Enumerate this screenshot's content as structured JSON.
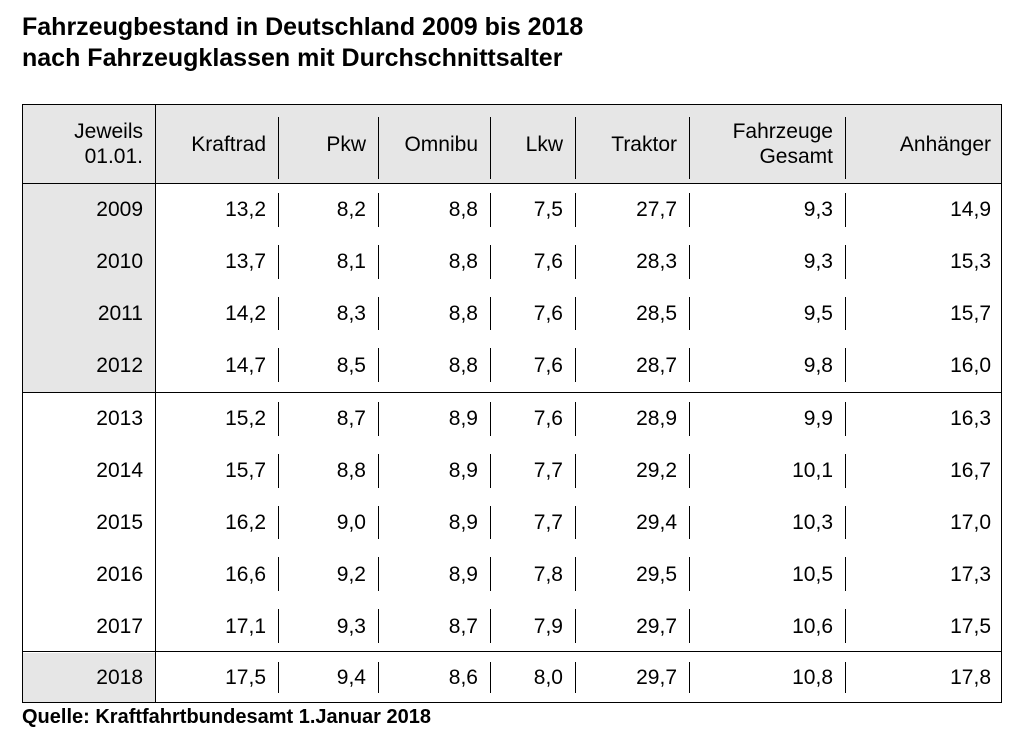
{
  "title": {
    "line1": "Fahrzeugbestand in Deutschland 2009 bis 2018",
    "line2": "nach Fahrzeugklassen mit Durchschnittsalter"
  },
  "table": {
    "headers": [
      {
        "line1": "Jeweils",
        "line2": "01.01."
      },
      {
        "line1": "Kraftrad",
        "line2": ""
      },
      {
        "line1": "Pkw",
        "line2": ""
      },
      {
        "line1": "Omnibu",
        "line2": ""
      },
      {
        "line1": "Lkw",
        "line2": ""
      },
      {
        "line1": "Traktor",
        "line2": ""
      },
      {
        "line1": "Fahrzeuge",
        "line2": "Gesamt"
      },
      {
        "line1": "Anhänger",
        "line2": ""
      }
    ],
    "rows": [
      [
        "2009",
        "13,2",
        "8,2",
        "8,8",
        "7,5",
        "27,7",
        "9,3",
        "14,9"
      ],
      [
        "2010",
        "13,7",
        "8,1",
        "8,8",
        "7,6",
        "28,3",
        "9,3",
        "15,3"
      ],
      [
        "2011",
        "14,2",
        "8,3",
        "8,8",
        "7,6",
        "28,5",
        "9,5",
        "15,7"
      ],
      [
        "2012",
        "14,7",
        "8,5",
        "8,8",
        "7,6",
        "28,7",
        "9,8",
        "16,0"
      ],
      [
        "2013",
        "15,2",
        "8,7",
        "8,9",
        "7,6",
        "28,9",
        "9,9",
        "16,3"
      ],
      [
        "2014",
        "15,7",
        "8,8",
        "8,9",
        "7,7",
        "29,2",
        "10,1",
        "16,7"
      ],
      [
        "2015",
        "16,2",
        "9,0",
        "8,9",
        "7,7",
        "29,4",
        "10,3",
        "17,0"
      ],
      [
        "2016",
        "16,6",
        "9,2",
        "8,9",
        "7,8",
        "29,5",
        "10,5",
        "17,3"
      ],
      [
        "2017",
        "17,1",
        "9,3",
        "8,7",
        "7,9",
        "29,7",
        "10,6",
        "17,5"
      ],
      [
        "2018",
        "17,5",
        "9,4",
        "8,6",
        "8,0",
        "29,7",
        "10,8",
        "17,8"
      ]
    ]
  },
  "source": "Quelle: Kraftfahrtbundesamt 1.Januar 2018"
}
